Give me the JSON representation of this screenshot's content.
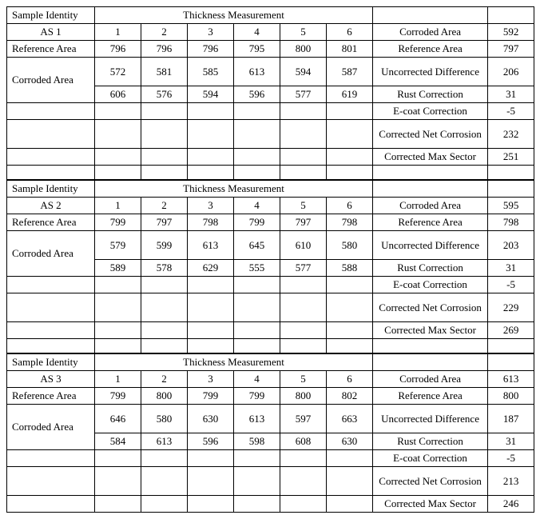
{
  "tables": [
    {
      "header_left": "Sample Identity",
      "header_mid": "Thickness Measurement",
      "sample_id": "AS 1",
      "cols": [
        "1",
        "2",
        "3",
        "4",
        "5",
        "6"
      ],
      "ref_label": "Reference Area",
      "ref_vals": [
        "796",
        "796",
        "796",
        "795",
        "800",
        "801"
      ],
      "cor_label": "Corroded Area",
      "cor_row1": [
        "572",
        "581",
        "585",
        "613",
        "594",
        "587"
      ],
      "cor_row2": [
        "606",
        "576",
        "594",
        "596",
        "577",
        "619"
      ],
      "results": [
        {
          "label": "Corroded Area",
          "val": "592"
        },
        {
          "label": "Reference Area",
          "val": "797"
        },
        {
          "label": "Uncorrected Difference",
          "val": "206",
          "tall": true
        },
        {
          "label": "Rust Correction",
          "val": "31"
        },
        {
          "label": "E-coat Correction",
          "val": "-5"
        },
        {
          "label": "Corrected Net Corrosion",
          "val": "232",
          "tall": true
        },
        {
          "label": "Corrected Max Sector",
          "val": "251"
        }
      ]
    },
    {
      "header_left": "Sample Identity",
      "header_mid": "Thickness Measurement",
      "sample_id": "AS 2",
      "cols": [
        "1",
        "2",
        "3",
        "4",
        "5",
        "6"
      ],
      "ref_label": "Reference Area",
      "ref_vals": [
        "799",
        "797",
        "798",
        "799",
        "797",
        "798"
      ],
      "cor_label": "Corroded Area",
      "cor_row1": [
        "579",
        "599",
        "613",
        "645",
        "610",
        "580"
      ],
      "cor_row2": [
        "589",
        "578",
        "629",
        "555",
        "577",
        "588"
      ],
      "results": [
        {
          "label": "Corroded Area",
          "val": "595"
        },
        {
          "label": "Reference Area",
          "val": "798"
        },
        {
          "label": "Uncorrected Difference",
          "val": "203",
          "tall": true
        },
        {
          "label": "Rust Correction",
          "val": "31"
        },
        {
          "label": "E-coat Correction",
          "val": "-5"
        },
        {
          "label": "Corrected Net Corrosion",
          "val": "229",
          "tall": true
        },
        {
          "label": "Corrected Max Sector",
          "val": "269"
        }
      ]
    },
    {
      "header_left": "Sample Identity",
      "header_mid": "Thickness Measurement",
      "sample_id": "AS 3",
      "cols": [
        "1",
        "2",
        "3",
        "4",
        "5",
        "6"
      ],
      "ref_label": "Reference Area",
      "ref_vals": [
        "799",
        "800",
        "799",
        "799",
        "800",
        "802"
      ],
      "cor_label": "Corroded Area",
      "cor_row1": [
        "646",
        "580",
        "630",
        "613",
        "597",
        "663"
      ],
      "cor_row2": [
        "584",
        "613",
        "596",
        "598",
        "608",
        "630"
      ],
      "results": [
        {
          "label": "Corroded Area",
          "val": "613"
        },
        {
          "label": "Reference Area",
          "val": "800"
        },
        {
          "label": "Uncorrected Difference",
          "val": "187",
          "tall": true
        },
        {
          "label": "Rust Correction",
          "val": "31"
        },
        {
          "label": "E-coat Correction",
          "val": "-5"
        },
        {
          "label": "Corrected Net Corrosion",
          "val": "213",
          "tall": true
        },
        {
          "label": "Corrected Max Sector",
          "val": "246"
        }
      ]
    }
  ]
}
